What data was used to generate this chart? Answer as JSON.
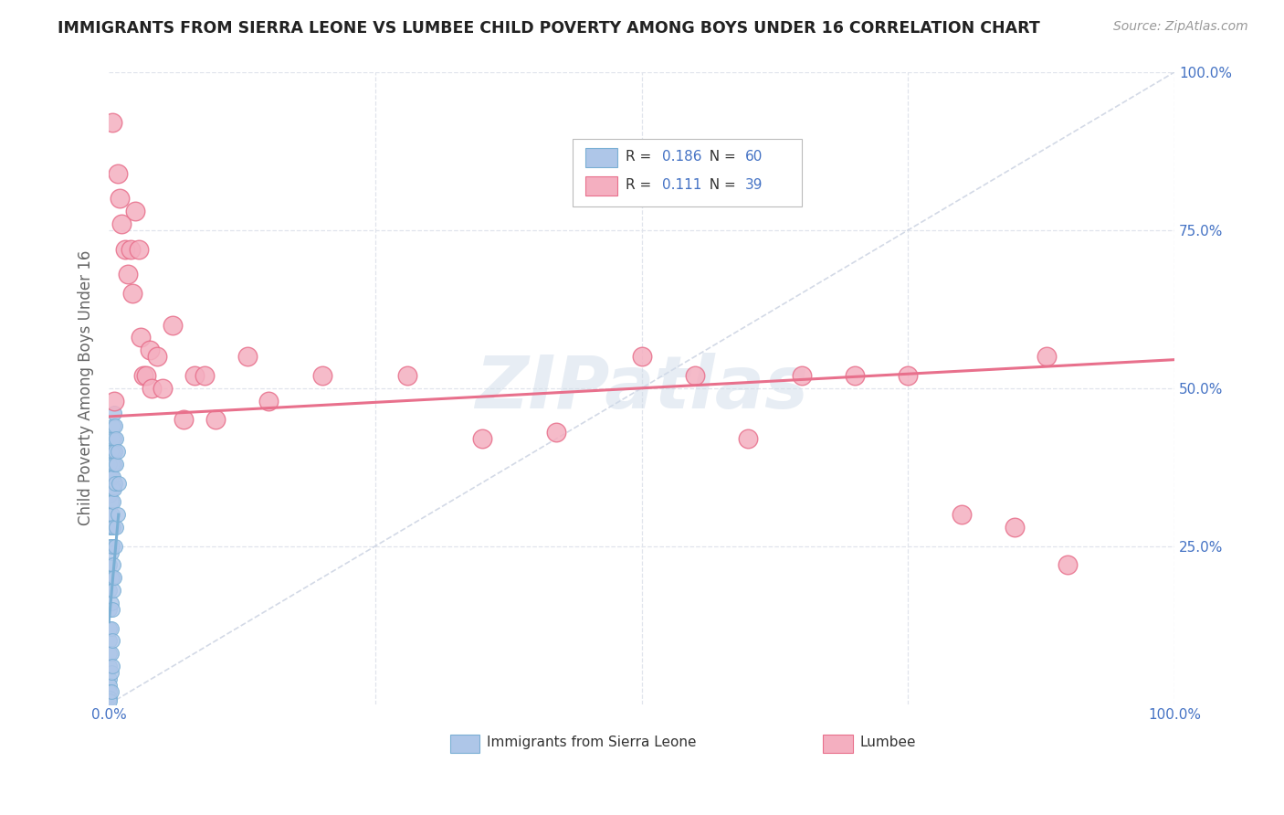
{
  "title": "IMMIGRANTS FROM SIERRA LEONE VS LUMBEE CHILD POVERTY AMONG BOYS UNDER 16 CORRELATION CHART",
  "source": "Source: ZipAtlas.com",
  "ylabel": "Child Poverty Among Boys Under 16",
  "xlim": [
    0,
    1.0
  ],
  "ylim": [
    0,
    1.0
  ],
  "sierra_leone_color": "#aec6e8",
  "sierra_leone_edge": "#7aafd4",
  "lumbee_color": "#f4afc0",
  "lumbee_edge": "#e8708c",
  "trendline_sierra_color": "#7aafd4",
  "trendline_lumbee_color": "#e8708c",
  "diagonal_color": "#c8d0e0",
  "grid_color": "#e0e4ec",
  "R_sierra": 0.186,
  "N_sierra": 60,
  "R_lumbee": 0.111,
  "N_lumbee": 39,
  "axis_label_color": "#4472c4",
  "ylabel_color": "#666666",
  "watermark_color": "#d0dcea",
  "watermark_alpha": 0.5,
  "title_color": "#222222",
  "source_color": "#999999",
  "sl_x": [
    0.001,
    0.001,
    0.001,
    0.001,
    0.001,
    0.001,
    0.001,
    0.001,
    0.001,
    0.001,
    0.001,
    0.001,
    0.001,
    0.001,
    0.001,
    0.001,
    0.001,
    0.001,
    0.002,
    0.002,
    0.002,
    0.002,
    0.002,
    0.002,
    0.002,
    0.002,
    0.002,
    0.002,
    0.002,
    0.003,
    0.003,
    0.003,
    0.003,
    0.003,
    0.003,
    0.003,
    0.003,
    0.003,
    0.004,
    0.004,
    0.004,
    0.004,
    0.004,
    0.004,
    0.004,
    0.005,
    0.005,
    0.005,
    0.005,
    0.005,
    0.006,
    0.006,
    0.006,
    0.006,
    0.007,
    0.007,
    0.007,
    0.008,
    0.008,
    0.009
  ],
  "sl_y": [
    0.38,
    0.36,
    0.33,
    0.3,
    0.28,
    0.25,
    0.22,
    0.18,
    0.15,
    0.12,
    0.1,
    0.08,
    0.06,
    0.04,
    0.03,
    0.02,
    0.01,
    0.005,
    0.4,
    0.36,
    0.32,
    0.28,
    0.24,
    0.2,
    0.16,
    0.12,
    0.08,
    0.05,
    0.02,
    0.42,
    0.38,
    0.34,
    0.3,
    0.25,
    0.2,
    0.15,
    0.1,
    0.06,
    0.44,
    0.4,
    0.36,
    0.32,
    0.28,
    0.22,
    0.18,
    0.46,
    0.42,
    0.38,
    0.34,
    0.2,
    0.44,
    0.4,
    0.35,
    0.25,
    0.42,
    0.38,
    0.28,
    0.4,
    0.3,
    0.35
  ],
  "lu_x": [
    0.003,
    0.008,
    0.01,
    0.012,
    0.015,
    0.018,
    0.02,
    0.022,
    0.025,
    0.028,
    0.03,
    0.032,
    0.035,
    0.038,
    0.04,
    0.045,
    0.05,
    0.06,
    0.07,
    0.08,
    0.09,
    0.1,
    0.13,
    0.15,
    0.2,
    0.28,
    0.35,
    0.42,
    0.5,
    0.55,
    0.6,
    0.65,
    0.7,
    0.75,
    0.8,
    0.85,
    0.88,
    0.9,
    0.005
  ],
  "lu_y": [
    0.92,
    0.84,
    0.8,
    0.76,
    0.72,
    0.68,
    0.72,
    0.65,
    0.78,
    0.72,
    0.58,
    0.52,
    0.52,
    0.56,
    0.5,
    0.55,
    0.5,
    0.6,
    0.45,
    0.52,
    0.52,
    0.45,
    0.55,
    0.48,
    0.52,
    0.52,
    0.42,
    0.43,
    0.55,
    0.52,
    0.42,
    0.52,
    0.52,
    0.52,
    0.3,
    0.28,
    0.55,
    0.22,
    0.48
  ],
  "lumbee_trendline_x": [
    0.0,
    1.0
  ],
  "lumbee_trendline_y": [
    0.455,
    0.545
  ],
  "sl_trendline_x": [
    0.0,
    0.009
  ],
  "sl_trendline_y": [
    0.13,
    0.3
  ]
}
